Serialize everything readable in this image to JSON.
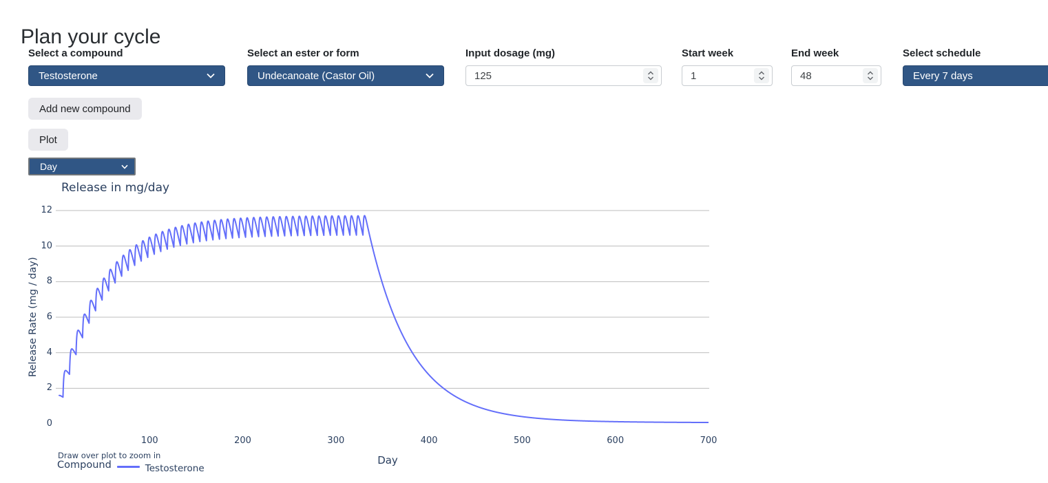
{
  "page": {
    "title": "Plan your cycle"
  },
  "form": {
    "compound": {
      "label": "Select a compound",
      "value": "Testosterone"
    },
    "ester": {
      "label": "Select an ester or form",
      "value": "Undecanoate (Castor Oil)"
    },
    "dosage": {
      "label": "Input dosage (mg)",
      "value": "125"
    },
    "start_week": {
      "label": "Start week",
      "value": "1"
    },
    "end_week": {
      "label": "End week",
      "value": "48"
    },
    "schedule": {
      "label": "Select schedule",
      "value": "Every 7 days"
    }
  },
  "actions": {
    "add_compound": "Add new compound",
    "plot": "Plot"
  },
  "unit_select": {
    "value": "Day"
  },
  "colors": {
    "select_blue": "#305685",
    "line_blue": "#636efa",
    "chart_text": "#2a3f5f",
    "gridline": "#bdbdbd"
  },
  "chart_data": {
    "type": "line",
    "title": "Release in mg/day",
    "xlabel": "Day",
    "ylabel": "Release Rate (mg / day)",
    "xlim": [
      0,
      700
    ],
    "ylim": [
      0,
      12
    ],
    "xticks": [
      100,
      200,
      300,
      400,
      500,
      600,
      700
    ],
    "yticks": [
      0,
      2,
      4,
      6,
      8,
      10,
      12
    ],
    "grid": "horizontal gridlines at yticks 2-12, none at 0, no vertical gridlines",
    "caption": "Draw over plot to zoom in",
    "legend": {
      "title": "Compound",
      "position": "bottom-left",
      "entries": [
        {
          "label": "Testosterone",
          "color": "#636efa"
        }
      ]
    },
    "series": [
      {
        "name": "Testosterone",
        "color": "#636efa",
        "description": "Weekly 125 mg injections for 48 weeks produce a sawtooth release curve: first peak ~1.5 mg/day, envelope rising to steady-state peaks ~11.7 and troughs ~10.2 mg/day, last dose at day 329 (sawtooth ends ~day 331), then exponential decay reaching ~0.4 mg/day at day 500 and ~0.1 mg/day by day 700",
        "model": {
          "kind": "superposition-of-dose-release-curves",
          "first_dose_day": 0,
          "dose_interval_days": 7,
          "num_doses": 48,
          "absorption_tau_days": 0.8,
          "elimination_tau_days": 46,
          "steady_state_peak": 11.7,
          "steady_state_trough": 10.2,
          "first_peak": 1.5,
          "post_tail": {
            "amp": 0.15,
            "tau": 500,
            "rise_tau": 40
          },
          "first_sample_day": 2.5,
          "sample_step_days": 0.25
        }
      }
    ]
  }
}
